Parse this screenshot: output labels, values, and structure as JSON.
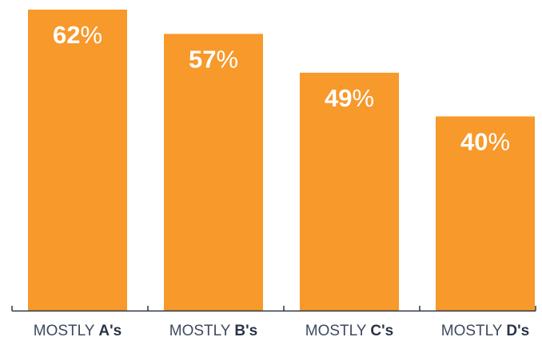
{
  "colors": {
    "bar": "#F7992B",
    "axis": "#2B3447",
    "label": "#3F4A5E",
    "value_text": "#FFFFFF"
  },
  "chart_data": {
    "type": "bar",
    "title": "",
    "xlabel": "",
    "ylabel": "",
    "ylim": [
      0,
      62
    ],
    "grid": false,
    "categories": [
      "MOSTLY A's",
      "MOSTLY B's",
      "MOSTLY C's",
      "MOSTLY D's"
    ],
    "category_parts": [
      {
        "prefix": "MOSTLY ",
        "grade": "A's"
      },
      {
        "prefix": "MOSTLY ",
        "grade": "B's"
      },
      {
        "prefix": "MOSTLY ",
        "grade": "C's"
      },
      {
        "prefix": "MOSTLY ",
        "grade": "D's"
      }
    ],
    "values": [
      62,
      57,
      49,
      40
    ],
    "value_labels": [
      "62",
      "57",
      "49",
      "40"
    ],
    "value_suffix": "%"
  }
}
